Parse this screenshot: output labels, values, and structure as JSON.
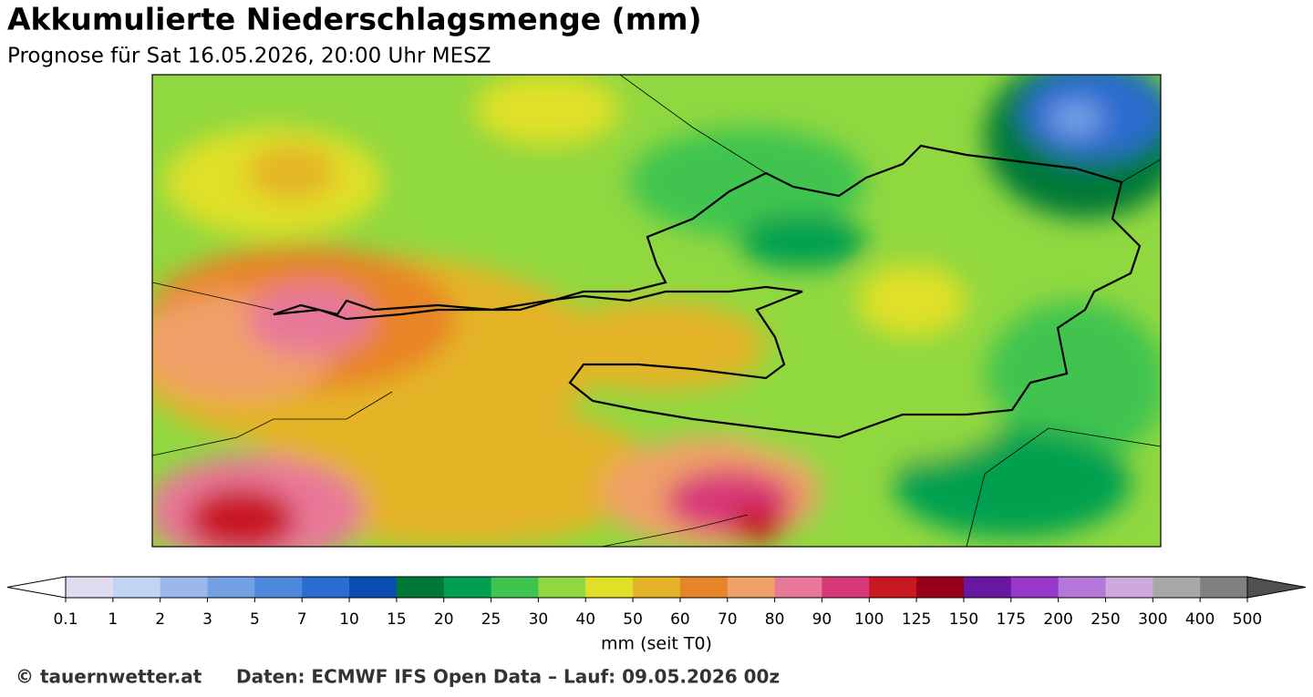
{
  "header": {
    "title": "Akkumulierte Niederschlagsmenge (mm)",
    "subtitle": "Prognose für Sat 16.05.2026, 20:00 Uhr MESZ"
  },
  "colorbar": {
    "ticks": [
      0.1,
      1,
      2,
      3,
      5,
      7,
      10,
      15,
      20,
      25,
      30,
      40,
      50,
      60,
      70,
      80,
      90,
      100,
      125,
      150,
      175,
      200,
      250,
      300,
      400,
      500
    ],
    "colors": [
      "#e0dcf0",
      "#c2d4f4",
      "#9ab8ec",
      "#74a0e4",
      "#4e88dc",
      "#2a6cd0",
      "#0a4cb0",
      "#007838",
      "#00a050",
      "#40c450",
      "#90d840",
      "#e0e028",
      "#e4b428",
      "#e88428",
      "#f0a068",
      "#e87898",
      "#d83878",
      "#c81820",
      "#980018",
      "#6818a0",
      "#9838c8",
      "#b478d8",
      "#d0a8e0",
      "#a8a8a8",
      "#808080"
    ],
    "extend_colors": [
      "#ffffff",
      "#505050"
    ],
    "label": "mm (seit T0)"
  },
  "footer": {
    "copyright": "© tauernwetter.at",
    "source": "Daten: ECMWF IFS Open Data – Lauf: 09.05.2026 00z"
  }
}
